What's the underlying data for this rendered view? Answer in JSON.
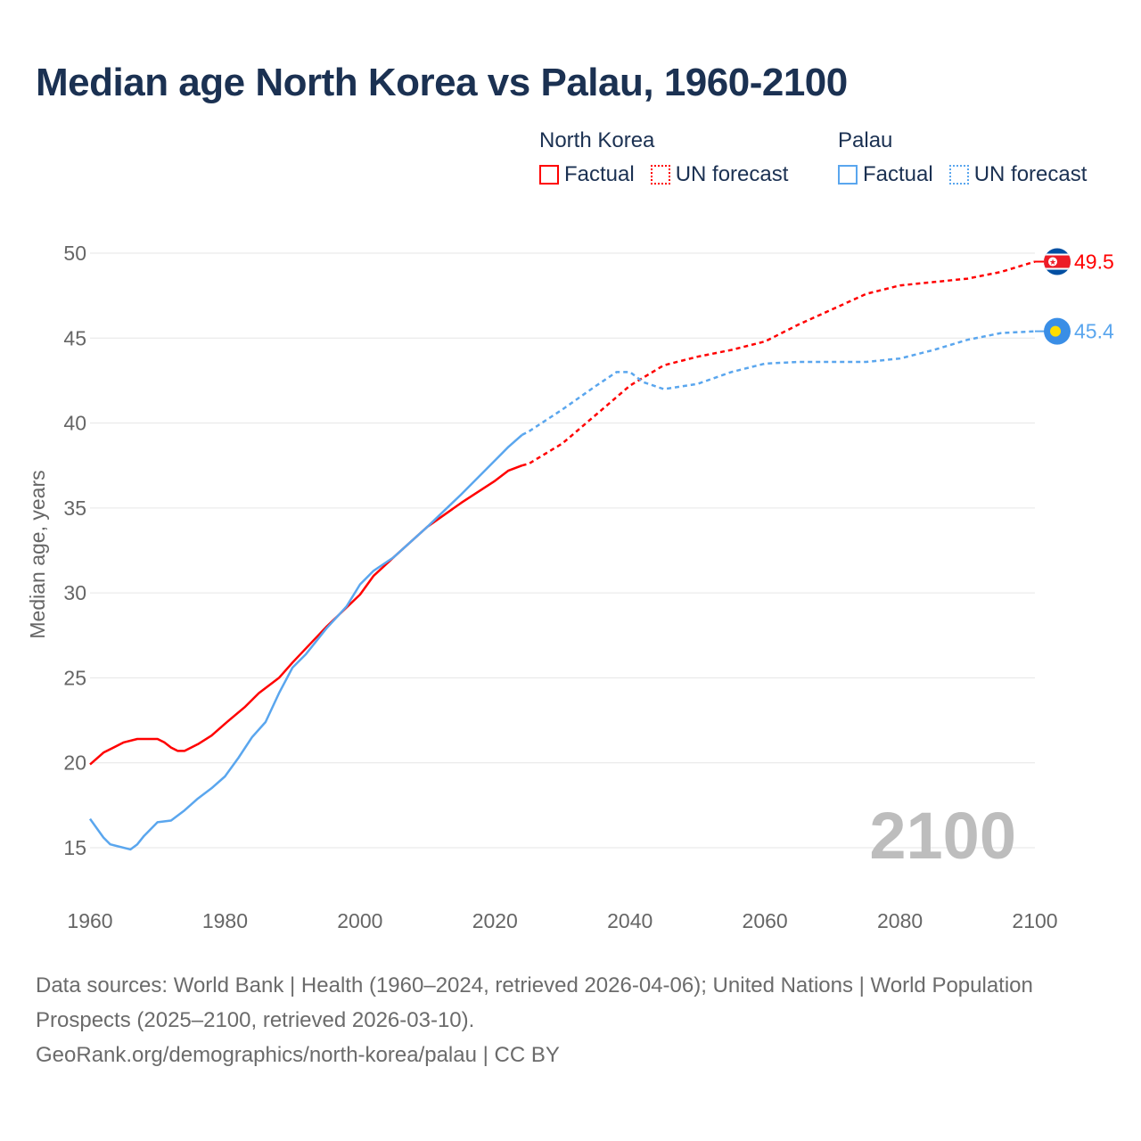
{
  "chart_data": {
    "type": "line",
    "title": "Median age North Korea vs Palau, 1960-2100",
    "ylabel": "Median age, years",
    "xlabel": "",
    "xlim": [
      1960,
      2100
    ],
    "ylim": [
      15,
      50
    ],
    "x_ticks": [
      "1960",
      "1980",
      "2000",
      "2020",
      "2040",
      "2060",
      "2080",
      "2100"
    ],
    "y_ticks": [
      "15",
      "20",
      "25",
      "30",
      "35",
      "40",
      "45",
      "50"
    ],
    "grid": true,
    "current_year_label": "2100",
    "legend": {
      "placement": "top-right",
      "groups": [
        {
          "name": "North Korea",
          "factual": "Factual",
          "forecast": "UN forecast",
          "color": "#ff0000"
        },
        {
          "name": "Palau",
          "factual": "Factual",
          "forecast": "UN forecast",
          "color": "#5aa6ee"
        }
      ]
    },
    "series": [
      {
        "name": "North Korea",
        "color": "#ff0000",
        "end_label": "49.5",
        "factual": [
          [
            1960,
            19.9
          ],
          [
            1962,
            20.6
          ],
          [
            1965,
            21.2
          ],
          [
            1967,
            21.4
          ],
          [
            1970,
            21.4
          ],
          [
            1971,
            21.2
          ],
          [
            1972,
            20.9
          ],
          [
            1973,
            20.7
          ],
          [
            1974,
            20.7
          ],
          [
            1976,
            21.1
          ],
          [
            1978,
            21.6
          ],
          [
            1980,
            22.3
          ],
          [
            1983,
            23.3
          ],
          [
            1985,
            24.1
          ],
          [
            1988,
            25.0
          ],
          [
            1990,
            25.9
          ],
          [
            1995,
            28.0
          ],
          [
            2000,
            29.9
          ],
          [
            2002,
            31.0
          ],
          [
            2005,
            32.1
          ],
          [
            2010,
            33.9
          ],
          [
            2015,
            35.3
          ],
          [
            2020,
            36.6
          ],
          [
            2022,
            37.2
          ],
          [
            2024,
            37.5
          ]
        ],
        "forecast": [
          [
            2024,
            37.5
          ],
          [
            2025,
            37.6
          ],
          [
            2030,
            38.8
          ],
          [
            2035,
            40.5
          ],
          [
            2040,
            42.2
          ],
          [
            2045,
            43.4
          ],
          [
            2050,
            43.9
          ],
          [
            2055,
            44.3
          ],
          [
            2060,
            44.8
          ],
          [
            2065,
            45.8
          ],
          [
            2070,
            46.7
          ],
          [
            2075,
            47.6
          ],
          [
            2080,
            48.1
          ],
          [
            2085,
            48.3
          ],
          [
            2090,
            48.5
          ],
          [
            2095,
            48.9
          ],
          [
            2100,
            49.5
          ]
        ]
      },
      {
        "name": "Palau",
        "color": "#5aa6ee",
        "end_label": "45.4",
        "factual": [
          [
            1960,
            16.7
          ],
          [
            1962,
            15.6
          ],
          [
            1963,
            15.2
          ],
          [
            1966,
            14.9
          ],
          [
            1967,
            15.2
          ],
          [
            1968,
            15.7
          ],
          [
            1970,
            16.5
          ],
          [
            1972,
            16.6
          ],
          [
            1974,
            17.2
          ],
          [
            1976,
            17.9
          ],
          [
            1978,
            18.5
          ],
          [
            1980,
            19.2
          ],
          [
            1982,
            20.3
          ],
          [
            1984,
            21.5
          ],
          [
            1986,
            22.4
          ],
          [
            1988,
            24.1
          ],
          [
            1990,
            25.6
          ],
          [
            1992,
            26.4
          ],
          [
            1995,
            27.9
          ],
          [
            1998,
            29.2
          ],
          [
            2000,
            30.5
          ],
          [
            2002,
            31.3
          ],
          [
            2005,
            32.1
          ],
          [
            2010,
            33.9
          ],
          [
            2015,
            35.8
          ],
          [
            2020,
            37.8
          ],
          [
            2022,
            38.6
          ],
          [
            2024,
            39.3
          ]
        ],
        "forecast": [
          [
            2024,
            39.3
          ],
          [
            2025,
            39.5
          ],
          [
            2030,
            40.8
          ],
          [
            2035,
            42.2
          ],
          [
            2038,
            43.0
          ],
          [
            2040,
            43.0
          ],
          [
            2042,
            42.4
          ],
          [
            2045,
            42.0
          ],
          [
            2050,
            42.3
          ],
          [
            2055,
            43.0
          ],
          [
            2060,
            43.5
          ],
          [
            2065,
            43.6
          ],
          [
            2070,
            43.6
          ],
          [
            2075,
            43.6
          ],
          [
            2080,
            43.8
          ],
          [
            2085,
            44.3
          ],
          [
            2090,
            44.9
          ],
          [
            2095,
            45.3
          ],
          [
            2100,
            45.4
          ]
        ]
      }
    ]
  },
  "footer": {
    "sources": "Data sources: World Bank | Health (1960–2024, retrieved 2026-04-06); United Nations | World Population Prospects (2025–2100, retrieved 2026-03-10).",
    "link": "GeoRank.org/demographics/north-korea/palau | CC BY"
  }
}
